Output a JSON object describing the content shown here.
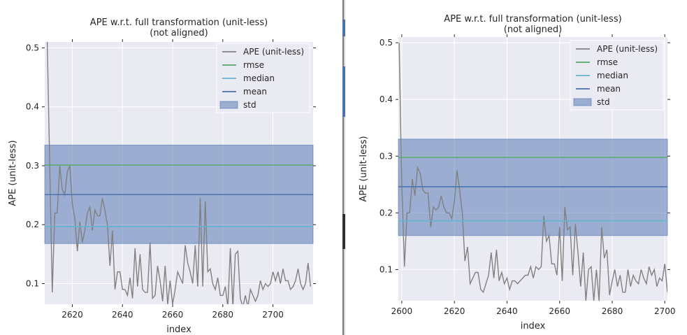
{
  "colors": {
    "plot_bg": "#eaeaf2",
    "grid": "#ffffff",
    "ape": "#808080",
    "rmse": "#55a868",
    "median": "#64b5cd",
    "mean": "#4c72b0",
    "std": "#4c72b0"
  },
  "chart_data": [
    {
      "type": "line",
      "title": "APE w.r.t. full transformation (unit-less)\n(not aligned)",
      "title_lines": [
        "APE w.r.t. full transformation (unit-less)",
        "(not aligned)"
      ],
      "xlabel": "index",
      "ylabel": "APE (unit-less)",
      "xlim": [
        2609,
        2716
      ],
      "ylim": [
        0.065,
        0.51
      ],
      "xticks": [
        2620,
        2640,
        2660,
        2680,
        2700
      ],
      "yticks": [
        0.1,
        0.2,
        0.3,
        0.4,
        0.5
      ],
      "xtick_labels": [
        "2620",
        "2640",
        "2660",
        "2680",
        "2700"
      ],
      "ytick_labels": [
        "0.1",
        "0.2",
        "0.3",
        "0.4",
        "0.5"
      ],
      "grid": true,
      "legend_position": "top-right",
      "legend": [
        "APE (unit-less)",
        "rmse",
        "median",
        "mean",
        "std"
      ],
      "x_start": 2610,
      "series": [
        {
          "name": "APE (unit-less)",
          "values": [
            0.51,
            0.3,
            0.085,
            0.22,
            0.22,
            0.3,
            0.26,
            0.25,
            0.29,
            0.3,
            0.235,
            0.21,
            0.155,
            0.205,
            0.17,
            0.19,
            0.22,
            0.23,
            0.19,
            0.225,
            0.215,
            0.215,
            0.245,
            0.225,
            0.2,
            0.13,
            0.19,
            0.09,
            0.12,
            0.12,
            0.09,
            0.09,
            0.08,
            0.11,
            0.075,
            0.16,
            0.095,
            0.15,
            0.09,
            0.085,
            0.085,
            0.17,
            0.075,
            0.08,
            0.13,
            0.105,
            0.07,
            0.13,
            0.065,
            0.105,
            0.065,
            0.09,
            0.12,
            0.11,
            0.1,
            0.165,
            0.135,
            0.12,
            0.1,
            0.165,
            0.095,
            0.245,
            0.095,
            0.24,
            0.12,
            0.125,
            0.1,
            0.09,
            0.11,
            0.08,
            0.08,
            0.095,
            0.06,
            0.16,
            0.06,
            0.15,
            0.155,
            0.075,
            0.06,
            0.08,
            0.06,
            0.09,
            0.08,
            0.07,
            0.08,
            0.105,
            0.09,
            0.1,
            0.095,
            0.1,
            0.12,
            0.105,
            0.12,
            0.1,
            0.125,
            0.105,
            0.105,
            0.09,
            0.095,
            0.105,
            0.125,
            0.1,
            0.09,
            0.1,
            0.135,
            0.095
          ]
        },
        {
          "name": "rmse",
          "value": 0.301
        },
        {
          "name": "median",
          "value": 0.197
        },
        {
          "name": "mean",
          "value": 0.251
        },
        {
          "name": "std",
          "range": [
            0.168,
            0.335
          ]
        }
      ]
    },
    {
      "type": "line",
      "title": "APE w.r.t. full transformation (unit-less)\n(not aligned)",
      "title_lines": [
        "APE w.r.t. full transformation (unit-less)",
        "(not aligned)"
      ],
      "xlabel": "index",
      "ylabel": "APE (unit-less)",
      "xlim": [
        2598.7,
        2701
      ],
      "ylim": [
        0.045,
        0.51
      ],
      "xticks": [
        2600,
        2620,
        2640,
        2660,
        2680,
        2700
      ],
      "yticks": [
        0.1,
        0.2,
        0.3,
        0.4,
        0.5
      ],
      "xtick_labels": [
        "2600",
        "2620",
        "2640",
        "2660",
        "2680",
        "2700"
      ],
      "ytick_labels": [
        "0.1",
        "0.2",
        "0.3",
        "0.4",
        "0.5"
      ],
      "grid": true,
      "legend_position": "top-right",
      "legend": [
        "APE (unit-less)",
        "rmse",
        "median",
        "mean",
        "std"
      ],
      "x_start": 2599,
      "series": [
        {
          "name": "APE (unit-less)",
          "values": [
            0.5,
            0.25,
            0.105,
            0.2,
            0.2,
            0.26,
            0.23,
            0.28,
            0.27,
            0.24,
            0.235,
            0.235,
            0.175,
            0.21,
            0.205,
            0.21,
            0.23,
            0.21,
            0.2,
            0.2,
            0.19,
            0.22,
            0.275,
            0.24,
            0.2,
            0.115,
            0.14,
            0.075,
            0.085,
            0.095,
            0.095,
            0.065,
            0.06,
            0.075,
            0.09,
            0.13,
            0.085,
            0.135,
            0.08,
            0.095,
            0.075,
            0.085,
            0.065,
            0.08,
            0.08,
            0.075,
            0.08,
            0.085,
            0.09,
            0.09,
            0.105,
            0.085,
            0.105,
            0.1,
            0.105,
            0.195,
            0.15,
            0.16,
            0.11,
            0.11,
            0.09,
            0.175,
            0.08,
            0.21,
            0.17,
            0.175,
            0.09,
            0.18,
            0.13,
            0.07,
            0.13,
            0.045,
            0.1,
            0.105,
            0.045,
            0.1,
            0.045,
            0.175,
            0.12,
            0.135,
            0.055,
            0.08,
            0.1,
            0.07,
            0.09,
            0.06,
            0.06,
            0.1,
            0.07,
            0.09,
            0.08,
            0.075,
            0.1,
            0.085,
            0.075,
            0.105,
            0.09,
            0.1,
            0.07,
            0.085,
            0.08,
            0.11,
            0.06
          ]
        },
        {
          "name": "rmse",
          "value": 0.298
        },
        {
          "name": "median",
          "value": 0.186
        },
        {
          "name": "mean",
          "value": 0.246
        },
        {
          "name": "std",
          "range": [
            0.16,
            0.33
          ]
        }
      ]
    }
  ]
}
